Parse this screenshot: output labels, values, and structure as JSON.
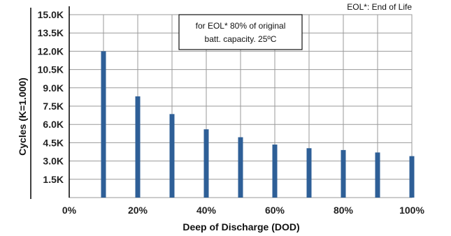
{
  "chart_data": {
    "type": "bar",
    "x": [
      10,
      20,
      30,
      40,
      50,
      60,
      70,
      80,
      90,
      100
    ],
    "values": [
      12000,
      8300,
      6850,
      5600,
      4950,
      4350,
      4050,
      3900,
      3700,
      3400
    ],
    "xlim": [
      0,
      100
    ],
    "ylim": [
      0,
      15000
    ],
    "y_ticks": [
      1500,
      3000,
      4500,
      6000,
      7500,
      9000,
      10500,
      12000,
      13500,
      15000
    ],
    "y_tick_labels": [
      "1.5K",
      "3.0K",
      "4.5K",
      "6.0K",
      "7.5K",
      "9.0K",
      "10.5K",
      "12.0K",
      "13.5K",
      "15.0K"
    ],
    "x_ticks": [
      0,
      20,
      40,
      60,
      80,
      100
    ],
    "x_tick_labels": [
      "0%",
      "20%",
      "40%",
      "60%",
      "80%",
      "100%"
    ],
    "xlabel": "Deep of Discharge (DOD)",
    "ylabel": "Cycles (K=1.000)",
    "grid": true,
    "bar_color": "#2e5f97",
    "annotation_box": [
      "for EOL* 80% of original",
      "batt. capacity. 25ºC"
    ],
    "footnote": "EOL*: End of Life"
  }
}
